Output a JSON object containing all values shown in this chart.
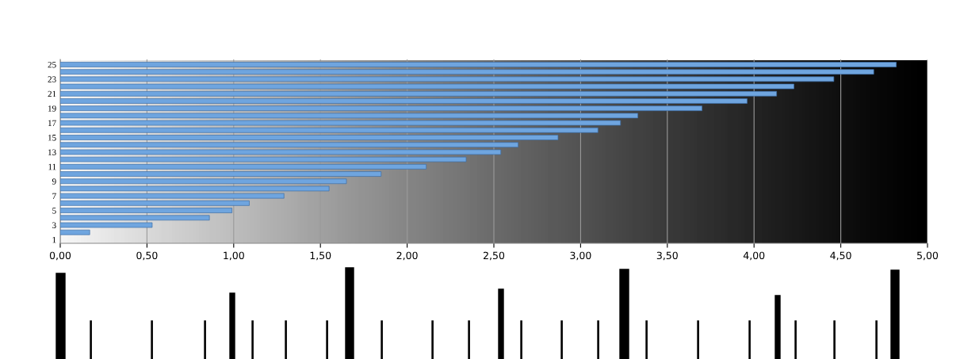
{
  "chart_data": {
    "type": "bar",
    "orientation": "horizontal",
    "categories": [
      "25",
      null,
      "23",
      null,
      "21",
      null,
      "19",
      null,
      "17",
      null,
      "15",
      null,
      "13",
      null,
      "11",
      null,
      "9",
      null,
      "7",
      null,
      "5",
      null,
      "3",
      null,
      "1"
    ],
    "values": [
      4.82,
      4.69,
      4.46,
      4.23,
      4.13,
      3.96,
      3.7,
      3.33,
      3.23,
      3.1,
      2.87,
      2.64,
      2.54,
      2.34,
      2.11,
      1.85,
      1.65,
      1.55,
      1.29,
      1.09,
      0.99,
      0.86,
      0.53,
      0.17,
      null
    ],
    "color": "#6fa5df",
    "xlim": [
      0,
      5
    ],
    "xticks": [
      {
        "value": 0,
        "label": "0,00"
      },
      {
        "value": 0.5,
        "label": "0,50"
      },
      {
        "value": 1,
        "label": "1,00"
      },
      {
        "value": 1.5,
        "label": "1,50"
      },
      {
        "value": 2,
        "label": "2,00"
      },
      {
        "value": 2.5,
        "label": "2,50"
      },
      {
        "value": 3,
        "label": "3,00"
      },
      {
        "value": 3.5,
        "label": "3,50"
      },
      {
        "value": 4,
        "label": "4,00"
      },
      {
        "value": 4.5,
        "label": "4,50"
      },
      {
        "value": 5,
        "label": "5,00"
      }
    ],
    "grid": "x"
  }
}
